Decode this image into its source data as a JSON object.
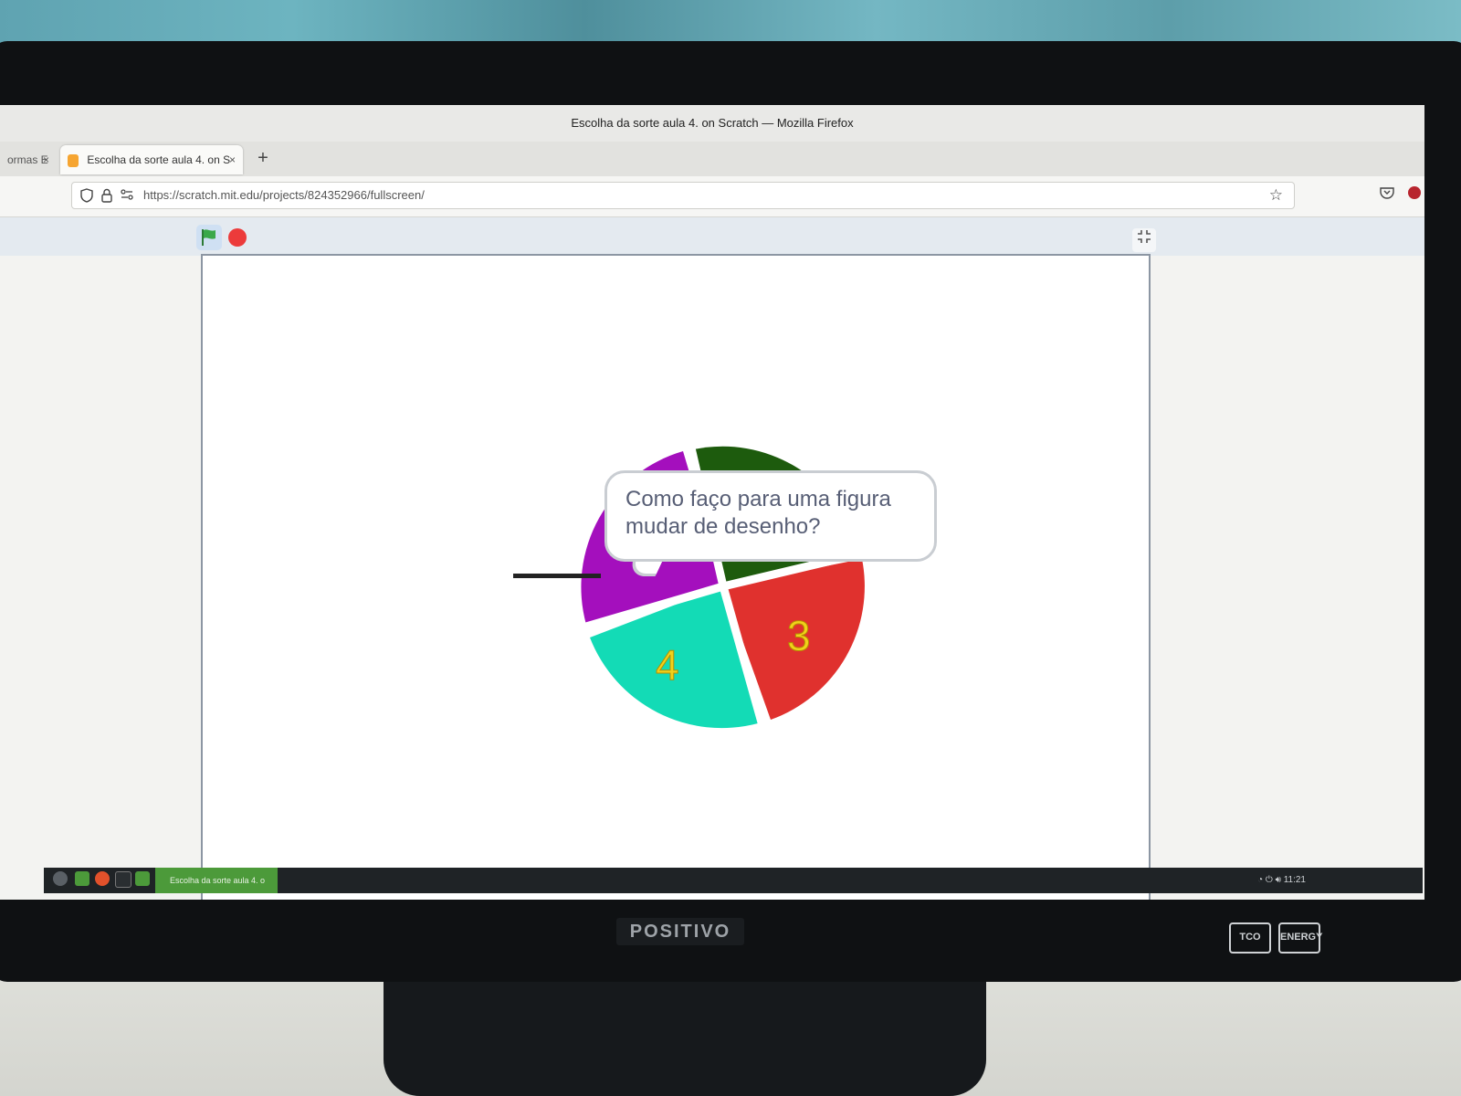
{
  "browser": {
    "window_title": "Escolha da sorte aula 4. on Scratch — Mozilla Firefox",
    "tabs": [
      {
        "label": "ormas E",
        "active": false
      },
      {
        "label": "Escolha da sorte aula 4. on S",
        "active": true
      }
    ],
    "new_tab_label": "+",
    "close_label": "×",
    "url": "https://scratch.mit.edu/projects/824352966/fullscreen/"
  },
  "scratch": {
    "speech_bubble": "Como faço para uma figura mudar de desenho?",
    "wheel": {
      "segments": [
        {
          "color": "#a40fbd",
          "label": ""
        },
        {
          "color": "#1d5b0d",
          "label": ""
        },
        {
          "color": "#e0312e",
          "label": "3"
        },
        {
          "color": "#13dbb6",
          "label": "4"
        }
      ],
      "label_color": "#f1d11a"
    },
    "answer_value": "",
    "green_flag_color": "#3aa84a",
    "stop_color": "#ec3b3b"
  },
  "taskbar": {
    "window_label": "Escolha da sorte aula 4. o",
    "clock": "11:21"
  },
  "monitor": {
    "brand": "POSITIVO",
    "badge_1": "TCO",
    "badge_2": "ENERGY"
  }
}
